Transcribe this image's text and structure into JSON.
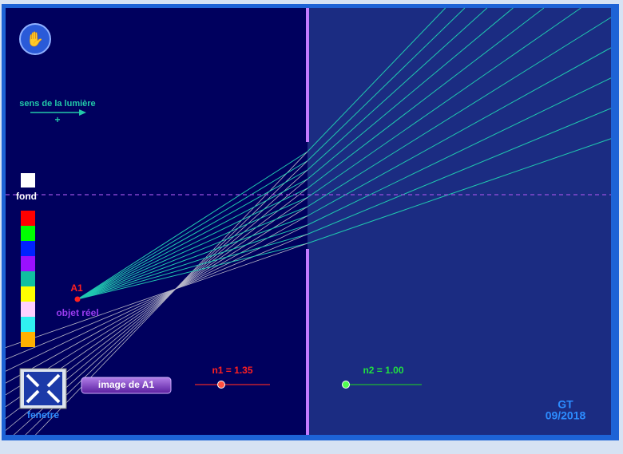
{
  "labels": {
    "direction": "sens de la lumière",
    "direction_sign": "+",
    "background": "fond",
    "object_name": "A1",
    "object_type": "objet réel",
    "button": "image de A1",
    "n1": "n1 = 1.35",
    "n2": "n2 = 1.00",
    "window": "fenetre",
    "author": "GT",
    "date": "09/2018"
  }
}
